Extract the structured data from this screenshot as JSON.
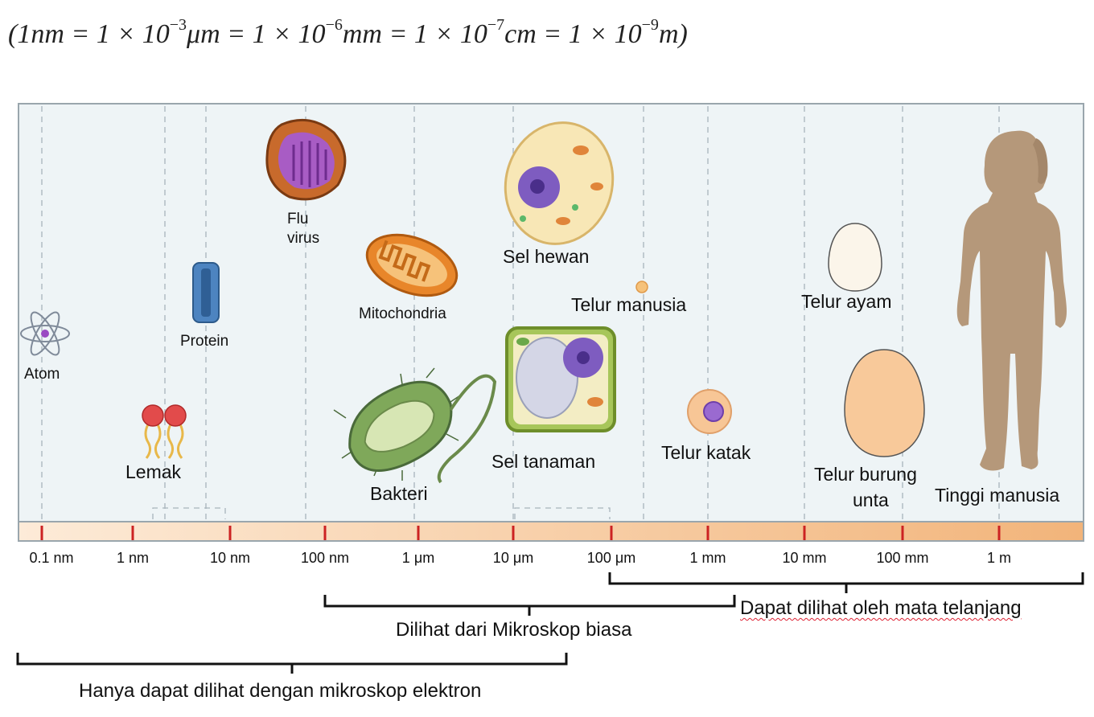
{
  "formula": {
    "a": "(1nm = 1 × 10",
    "e1": "−3",
    "b": "μm = 1 × 10",
    "e2": "−6",
    "c": "mm = 1 × 10",
    "e3": "−7",
    "d": "cm = 1 × 10",
    "e4": "−9",
    "e": "m)"
  },
  "scale_ticks": [
    "0.1 nm",
    "1 nm",
    "10 nm",
    "100 nm",
    "1 μm",
    "10 μm",
    "100 μm",
    "1 mm",
    "10 mm",
    "100 mm",
    "1 m"
  ],
  "items": {
    "atom": "Atom",
    "lemak": "Lemak",
    "protein": "Protein",
    "flu_virus_line1": "Flu",
    "flu_virus_line2": "virus",
    "mitochondria": "Mitochondria",
    "bakteri": "Bakteri",
    "sel_hewan": "Sel hewan",
    "sel_tanaman": "Sel tanaman",
    "telur_manusia": "Telur manusia",
    "telur_katak": "Telur katak",
    "telur_ayam": "Telur ayam",
    "telur_burung_unta_line1": "Telur burung",
    "telur_burung_unta_line2": "unta",
    "tinggi_manusia": "Tinggi manusia"
  },
  "ranges": {
    "naked_eye": "Dapat dilihat oleh mata telanjang",
    "light_microscope": "Dilihat dari Mikroskop biasa",
    "electron_microscope": "Hanya dapat dilihat dengan mikroskop elektron"
  },
  "colors": {
    "panel_bg": "#eef4f6",
    "tick_red": "#cc2222",
    "bar_start": "#fdebd8",
    "bar_end": "#f2b47a"
  }
}
